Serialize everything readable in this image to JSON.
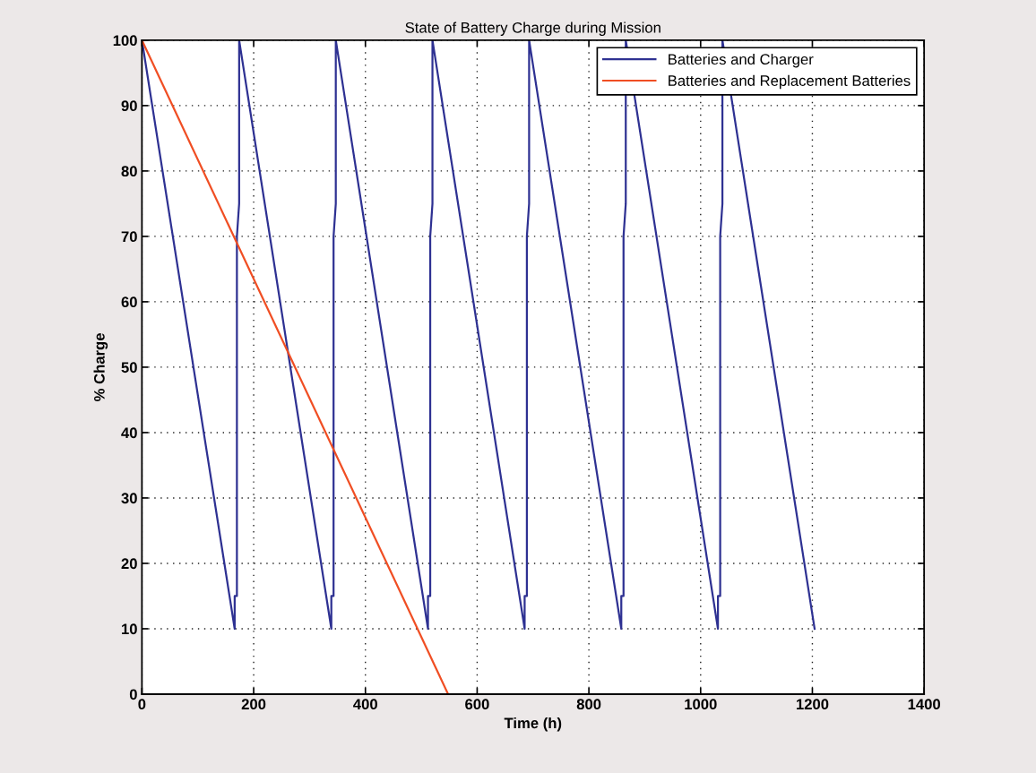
{
  "chart_data": {
    "type": "line",
    "title": "State of Battery Charge during Mission",
    "xlabel": "Time (h)",
    "ylabel": "% Charge",
    "series": [
      {
        "name": "Batteries and Charger",
        "color": "#2e3192",
        "x": [
          0,
          166,
          166,
          170,
          170,
          174,
          174,
          339,
          339,
          343,
          343,
          347,
          347,
          512,
          512,
          516,
          516,
          520,
          520,
          685,
          685,
          689,
          689,
          693,
          693,
          858,
          858,
          862,
          862,
          866,
          866,
          1031,
          1031,
          1035,
          1035,
          1039,
          1039,
          1204
        ],
        "values": [
          100,
          10,
          15,
          15,
          70,
          75,
          100,
          10,
          15,
          15,
          70,
          75,
          100,
          10,
          15,
          15,
          70,
          75,
          100,
          10,
          15,
          15,
          70,
          75,
          100,
          10,
          15,
          15,
          70,
          75,
          100,
          10,
          15,
          15,
          70,
          75,
          100,
          10
        ]
      },
      {
        "name": "Batteries and Replacement Batteries",
        "color": "#f04e23",
        "x": [
          0,
          548
        ],
        "values": [
          100,
          0
        ]
      }
    ],
    "xlim": [
      0,
      1400
    ],
    "xticks": [
      0,
      200,
      400,
      600,
      800,
      1000,
      1200,
      1400
    ],
    "ylim": [
      0,
      100
    ],
    "yticks": [
      0,
      10,
      20,
      30,
      40,
      50,
      60,
      70,
      80,
      90,
      100
    ],
    "grid": true,
    "legend": "top right",
    "line_style": "solid"
  }
}
